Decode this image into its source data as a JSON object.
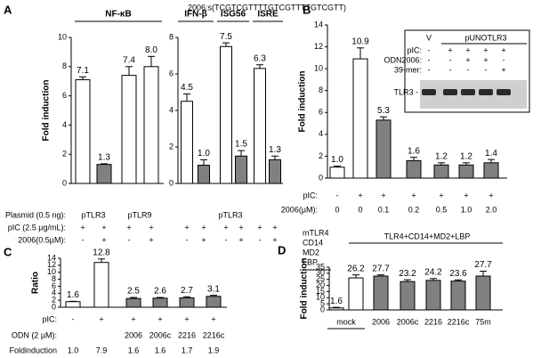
{
  "chart_data": [
    {
      "type": "bar",
      "panel": "A",
      "title": "2006:s(TCGTCGTTTTGTCGTTTTGTCGTT)",
      "ylabel": "Fold induction",
      "group_labels": [
        "NF-κB"
      ],
      "values": [
        7.1,
        1.3,
        7.4,
        8.0
      ],
      "value_labels": [
        "7.1",
        "1.3",
        "7.4",
        "8.0"
      ],
      "errors": [
        0.2,
        0.05,
        0.6,
        0.7
      ],
      "colors": [
        "#ffffff",
        "#808080",
        "#ffffff",
        "#ffffff"
      ],
      "ylim": [
        0,
        10
      ],
      "yticks": [
        0,
        2,
        4,
        6,
        8,
        10
      ],
      "rows": [
        {
          "label": "Plasmid (0.5 ng):",
          "values": [
            "pTLR3",
            "pTLR9"
          ]
        },
        {
          "label": "pIC (2.5 µg/mL):",
          "values": [
            "+",
            "+",
            "+",
            "+"
          ]
        },
        {
          "label": "2006(0.5µM):",
          "values": [
            "-",
            "+",
            "-",
            "+"
          ]
        }
      ]
    },
    {
      "type": "bar",
      "group_labels": [
        "IFN-β",
        "ISG56",
        "ISRE"
      ],
      "values": [
        4.5,
        1.0,
        7.5,
        1.5,
        6.3,
        1.3
      ],
      "value_labels": [
        "4.5",
        "1.0",
        "7.5",
        "1.5",
        "6.3",
        "1.3"
      ],
      "errors": [
        0.4,
        0.3,
        0.2,
        0.3,
        0.2,
        0.2
      ],
      "colors": [
        "#ffffff",
        "#808080",
        "#ffffff",
        "#808080",
        "#ffffff",
        "#808080"
      ],
      "ylim": [
        0,
        8
      ],
      "yticks": [
        0,
        2,
        4,
        6,
        8
      ],
      "rows": [
        {
          "values": [
            "pTLR3"
          ]
        },
        {
          "values": [
            "+",
            "+",
            "+",
            "+",
            "+",
            "+"
          ]
        },
        {
          "values": [
            "-",
            "+",
            "-",
            "+",
            "-",
            "+"
          ]
        }
      ]
    },
    {
      "type": "bar",
      "panel": "B",
      "ylabel": "Fold induction",
      "values": [
        1.0,
        10.9,
        5.3,
        1.6,
        1.2,
        1.2,
        1.4
      ],
      "value_labels": [
        "1.0",
        "10.9",
        "5.3",
        "1.6",
        "1.2",
        "1.2",
        "1.4"
      ],
      "errors": [
        0.1,
        1.0,
        0.3,
        0.3,
        0.2,
        0.2,
        0.3
      ],
      "colors": [
        "#ffffff",
        "#ffffff",
        "#808080",
        "#808080",
        "#808080",
        "#808080",
        "#808080"
      ],
      "ylim": [
        0,
        14
      ],
      "yticks": [
        0,
        2,
        4,
        6,
        8,
        10,
        12,
        14
      ],
      "rows": [
        {
          "label": "pIC:",
          "values": [
            "-",
            "+",
            "+",
            "+",
            "+",
            "+",
            "+"
          ]
        },
        {
          "label": "2006(µM):",
          "values": [
            "0",
            "0",
            "0.1",
            "0.2",
            "0.5",
            "1.0",
            "2.0"
          ]
        }
      ],
      "inset": {
        "col_labels": [
          "V",
          "pUNOTLR3"
        ],
        "rows": [
          {
            "label": "pIC:",
            "values": [
              "-",
              "+",
              "+",
              "+",
              "+"
            ]
          },
          {
            "label": "ODN2006:",
            "values": [
              "-",
              "-",
              "+",
              "+",
              "-"
            ]
          },
          {
            "label": "39-mer:",
            "values": [
              "-",
              "-",
              "-",
              "-",
              "+"
            ]
          }
        ],
        "band_label": "TLR3 -"
      }
    },
    {
      "type": "bar",
      "panel": "C",
      "ylabel": "Ratio",
      "values": [
        1.6,
        12.8,
        2.5,
        2.6,
        2.7,
        3.1
      ],
      "value_labels": [
        "1.6",
        "12.8",
        "2.5",
        "2.6",
        "2.7",
        "3.1"
      ],
      "errors": [
        0.1,
        1.0,
        0.3,
        0.2,
        0.3,
        0.3
      ],
      "colors": [
        "#ffffff",
        "#ffffff",
        "#808080",
        "#808080",
        "#808080",
        "#808080"
      ],
      "ylim": [
        0,
        14
      ],
      "yticks": [
        0,
        2,
        4,
        6,
        8,
        10,
        12,
        14
      ],
      "rows": [
        {
          "label": "pIC:",
          "values": [
            "-",
            "+",
            "+",
            "+",
            "+",
            "+"
          ]
        },
        {
          "label": "ODN (2 µM):",
          "values": [
            null,
            null,
            "2006",
            "2006c",
            "2216",
            "2216c"
          ]
        },
        {
          "label": "Foldinduction",
          "values": [
            "1.0",
            "7.9",
            "1.6",
            "1.6",
            "1.7",
            "1.9"
          ]
        }
      ]
    },
    {
      "type": "bar",
      "panel": "D",
      "ylabel": "Fold induction",
      "left_note": [
        "mTLR4",
        "CD14",
        "MD2",
        "LBP"
      ],
      "top_note": "TLR4+CD14+MD2+LBP",
      "categories": [
        "mock",
        null,
        "2006",
        "2006c",
        "2216",
        "2216c",
        "75m"
      ],
      "values": [
        1.6,
        26.2,
        27.7,
        23.2,
        24.2,
        23.6,
        27.7
      ],
      "value_labels": [
        "1.6",
        "26.2",
        "27.7",
        "23.2",
        "24.2",
        "23.6",
        "27.7"
      ],
      "errors": [
        0.5,
        2.5,
        1.0,
        1.5,
        1.5,
        1.0,
        4.0
      ],
      "colors": [
        "#ffffff",
        "#ffffff",
        "#808080",
        "#808080",
        "#808080",
        "#808080",
        "#808080"
      ],
      "ylim": [
        0,
        35
      ],
      "yticks": [
        0,
        5,
        10,
        15,
        20,
        25,
        30,
        35
      ]
    }
  ]
}
